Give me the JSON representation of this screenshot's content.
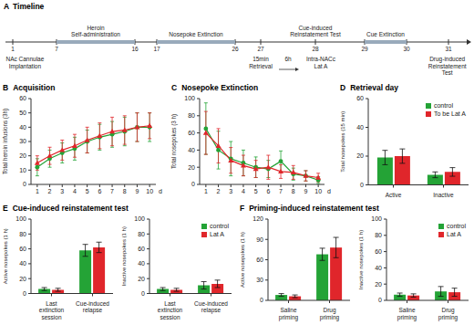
{
  "timeline": {
    "panel": "A",
    "title": "Timeline",
    "days": [
      1,
      7,
      16,
      17,
      26,
      27,
      28,
      29,
      30,
      31
    ],
    "events": [
      {
        "label": "NAc Cannulae Implantation",
        "day": 1
      },
      {
        "label": "Heroin Self-administration",
        "days": [
          7,
          16
        ]
      },
      {
        "label": "Nosepoke Extinction",
        "days": [
          17,
          26
        ]
      },
      {
        "label": "15min Retrieval",
        "day": 27
      },
      {
        "label": "6h"
      },
      {
        "label": "Intra-NACc Lat A"
      },
      {
        "label": "Cue-induced Reinstatement Test",
        "day": 28
      },
      {
        "label": "Cue Extinction",
        "days": [
          29,
          30
        ]
      },
      {
        "label": "Drug-induced Reinstatement Test",
        "day": 31
      }
    ]
  },
  "chart_data": [
    {
      "panel": "B",
      "type": "line",
      "title": "Acquisition",
      "x": [
        1,
        2,
        3,
        4,
        5,
        6,
        7,
        8,
        9,
        10
      ],
      "xlim": [
        0.5,
        10.5
      ],
      "xticks": [
        1,
        2,
        3,
        4,
        5,
        6,
        7,
        8,
        9,
        10
      ],
      "xlabel": "d",
      "ylabel": "Total heroin infusions (3h)",
      "ylim": [
        0,
        60
      ],
      "yticks": [
        0,
        10,
        20,
        30,
        40,
        50,
        60
      ],
      "series": [
        {
          "color": "#24a336",
          "marker": "circle",
          "values": [
            12,
            18,
            22,
            25,
            30,
            33,
            35,
            37,
            40,
            40
          ],
          "errors": [
            6,
            6,
            7,
            8,
            8,
            9,
            9,
            10,
            10,
            10
          ]
        },
        {
          "color": "#e0262b",
          "marker": "triangle",
          "values": [
            15,
            20,
            24,
            27,
            31,
            34,
            37,
            38,
            40,
            41
          ],
          "errors": [
            5,
            6,
            7,
            8,
            9,
            9,
            10,
            10,
            10,
            9
          ]
        }
      ]
    },
    {
      "panel": "C",
      "type": "line",
      "title": "Nosepoke Extinction",
      "x": [
        1,
        2,
        3,
        4,
        5,
        6,
        7,
        8,
        9,
        10
      ],
      "xlim": [
        0.5,
        10.5
      ],
      "xticks": [
        1,
        2,
        3,
        4,
        5,
        6,
        7,
        8,
        9,
        10
      ],
      "xlabel": "d",
      "ylabel": "Total nosepokes (3 h)",
      "ylim": [
        0,
        100
      ],
      "yticks": [
        0,
        20,
        40,
        60,
        80,
        100
      ],
      "series": [
        {
          "color": "#24a336",
          "marker": "circle",
          "values": [
            65,
            40,
            30,
            25,
            20,
            18,
            27,
            12,
            10,
            5
          ],
          "errors": [
            30,
            22,
            20,
            15,
            12,
            10,
            12,
            7,
            6,
            4
          ]
        },
        {
          "color": "#e0262b",
          "marker": "triangle",
          "values": [
            60,
            45,
            28,
            22,
            18,
            20,
            15,
            14,
            10,
            8
          ],
          "errors": [
            25,
            20,
            15,
            12,
            10,
            14,
            8,
            8,
            6,
            5
          ]
        }
      ]
    },
    {
      "panel": "D",
      "type": "bar",
      "title": "Retrieval day",
      "categories": [
        "Active",
        "Inactive"
      ],
      "ylabel": "Total nosepokes (15 min)",
      "ylim": [
        0,
        60
      ],
      "yticks": [
        0,
        20,
        40,
        60
      ],
      "legend": "upper right",
      "series": [
        {
          "name": "control",
          "color": "#24a336",
          "values": [
            19,
            7
          ],
          "errors": [
            5,
            2
          ]
        },
        {
          "name": "To be Lat A",
          "color": "#e0262b",
          "values": [
            20,
            9
          ],
          "errors": [
            5,
            3
          ]
        }
      ]
    },
    {
      "panel": "E",
      "type": "bar",
      "title": "Cue-induced reinstatement test",
      "categories": [
        "Last extinction session",
        "Cue-induced relapse"
      ],
      "ylabel": "Active nosepokes (1 h)",
      "ylim": [
        0,
        100
      ],
      "yticks": [
        0,
        20,
        40,
        60,
        80,
        100
      ],
      "series": [
        {
          "color": "#24a336",
          "values": [
            6,
            58
          ],
          "errors": [
            2,
            8
          ]
        },
        {
          "color": "#e0262b",
          "values": [
            5,
            62
          ],
          "errors": [
            2,
            7
          ]
        }
      ]
    },
    {
      "type": "bar",
      "categories": [
        "Last extinction session",
        "Cue-induced relapse"
      ],
      "ylabel": "Inactive nosepokes (1 h)",
      "ylim": [
        0,
        100
      ],
      "yticks": [
        0,
        20,
        40,
        60,
        80,
        100
      ],
      "legend": "upper right",
      "series": [
        {
          "name": "control",
          "color": "#24a336",
          "values": [
            6,
            11
          ],
          "errors": [
            2,
            5
          ]
        },
        {
          "name": "Lat A",
          "color": "#e0262b",
          "values": [
            5,
            13
          ],
          "errors": [
            2,
            5
          ]
        }
      ]
    },
    {
      "panel": "F",
      "type": "bar",
      "title": "Priming-induced reinstatement test",
      "categories": [
        "Saline priming",
        "Drug priming"
      ],
      "ylabel": "Active nosepokes (1 h)",
      "ylim": [
        0,
        120
      ],
      "yticks": [
        0,
        30,
        60,
        90,
        120
      ],
      "series": [
        {
          "color": "#24a336",
          "values": [
            8,
            68
          ],
          "errors": [
            2,
            9
          ]
        },
        {
          "color": "#e0262b",
          "values": [
            6,
            78
          ],
          "errors": [
            2,
            15
          ]
        }
      ]
    },
    {
      "type": "bar",
      "categories": [
        "Saline priming",
        "Drug priming"
      ],
      "ylabel": "Inactive nosepokes (1 h)",
      "ylim": [
        0,
        100
      ],
      "yticks": [
        0,
        20,
        40,
        60,
        80,
        100
      ],
      "legend": "upper right",
      "series": [
        {
          "name": "control",
          "color": "#24a336",
          "values": [
            7,
            11
          ],
          "errors": [
            2,
            6
          ]
        },
        {
          "name": "Lat A",
          "color": "#e0262b",
          "values": [
            6,
            10
          ],
          "errors": [
            2,
            5
          ]
        }
      ]
    }
  ]
}
